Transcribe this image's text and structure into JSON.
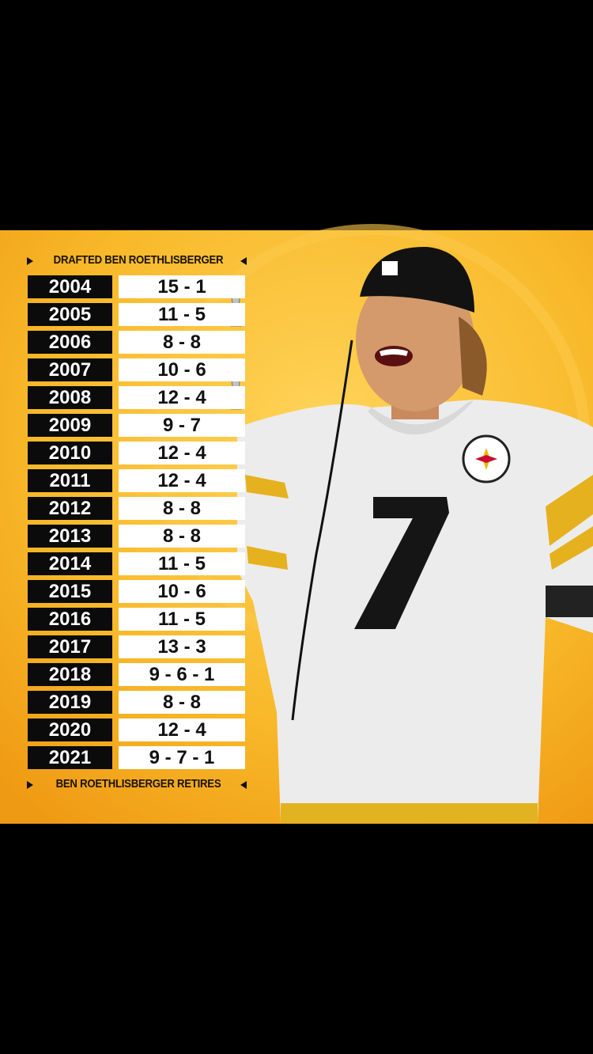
{
  "header": "DRAFTED BEN ROETHLISBERGER",
  "rows": [
    {
      "year": "2004",
      "record": "15 - 1"
    },
    {
      "year": "2005",
      "record": "11 - 5"
    },
    {
      "year": "2006",
      "record": "8 - 8"
    },
    {
      "year": "2007",
      "record": "10 - 6"
    },
    {
      "year": "2008",
      "record": "12 - 4"
    },
    {
      "year": "2009",
      "record": "9 - 7"
    },
    {
      "year": "2010",
      "record": "12 - 4"
    },
    {
      "year": "2011",
      "record": "12 - 4"
    },
    {
      "year": "2012",
      "record": "8 - 8"
    },
    {
      "year": "2013",
      "record": "8 - 8"
    },
    {
      "year": "2014",
      "record": "11 - 5"
    },
    {
      "year": "2015",
      "record": "10 - 6"
    },
    {
      "year": "2016",
      "record": "11 - 5"
    },
    {
      "year": "2017",
      "record": "13 - 3"
    },
    {
      "year": "2018",
      "record": "9 - 6 - 1"
    },
    {
      "year": "2019",
      "record": "8 - 8"
    },
    {
      "year": "2020",
      "record": "12 - 4"
    },
    {
      "year": "2021",
      "record": "9 - 7 - 1"
    }
  ],
  "footer": "BEN ROETHLISBERGER RETIRES"
}
